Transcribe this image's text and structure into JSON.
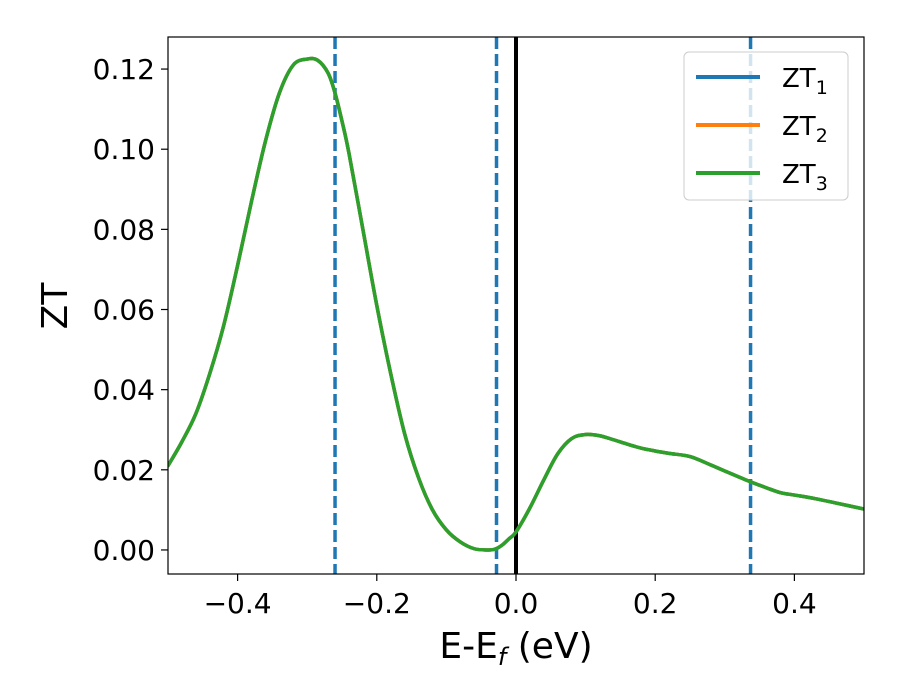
{
  "chart_data": {
    "type": "line",
    "xlabel_main": "E-E",
    "xlabel_sub": "f",
    "xlabel_unit": " (eV)",
    "ylabel": "ZT",
    "xlim": [
      -0.5,
      0.5
    ],
    "ylim": [
      -0.006,
      0.128
    ],
    "x_ticks": [
      -0.4,
      -0.2,
      0.0,
      0.2,
      0.4
    ],
    "x_tick_labels": [
      "−0.4",
      "−0.2",
      "0.0",
      "0.2",
      "0.4"
    ],
    "y_ticks": [
      0.0,
      0.02,
      0.04,
      0.06,
      0.08,
      0.1,
      0.12
    ],
    "y_tick_labels": [
      "0.00",
      "0.02",
      "0.04",
      "0.06",
      "0.08",
      "0.10",
      "0.12"
    ],
    "grid": false,
    "legend_position": "top-right",
    "legend": [
      {
        "base": "ZT",
        "sub": "1",
        "color": "#1f77b4"
      },
      {
        "base": "ZT",
        "sub": "2",
        "color": "#ff7f0e"
      },
      {
        "base": "ZT",
        "sub": "3",
        "color": "#2ca02c"
      }
    ],
    "x": [
      -0.5,
      -0.48,
      -0.46,
      -0.44,
      -0.42,
      -0.4,
      -0.38,
      -0.36,
      -0.34,
      -0.32,
      -0.3,
      -0.285,
      -0.27,
      -0.26,
      -0.25,
      -0.24,
      -0.22,
      -0.2,
      -0.18,
      -0.16,
      -0.14,
      -0.12,
      -0.1,
      -0.08,
      -0.06,
      -0.04,
      -0.03,
      -0.02,
      -0.01,
      0.0,
      0.02,
      0.04,
      0.06,
      0.08,
      0.1,
      0.12,
      0.14,
      0.16,
      0.18,
      0.2,
      0.22,
      0.25,
      0.28,
      0.3,
      0.33,
      0.36,
      0.38,
      0.4,
      0.43,
      0.46,
      0.5
    ],
    "series": [
      {
        "name": "ZT₁",
        "color": "#1f77b4",
        "values": [
          0.021,
          0.027,
          0.034,
          0.044,
          0.056,
          0.071,
          0.087,
          0.102,
          0.114,
          0.121,
          0.1225,
          0.1222,
          0.119,
          0.114,
          0.107,
          0.099,
          0.08,
          0.061,
          0.044,
          0.029,
          0.018,
          0.01,
          0.005,
          0.002,
          0.0003,
          0.0,
          0.0002,
          0.0012,
          0.0028,
          0.0045,
          0.0105,
          0.0175,
          0.024,
          0.0278,
          0.0288,
          0.0285,
          0.0275,
          0.0264,
          0.0254,
          0.0247,
          0.0241,
          0.0233,
          0.0212,
          0.0197,
          0.0175,
          0.0155,
          0.0143,
          0.0137,
          0.0128,
          0.0117,
          0.0102
        ]
      },
      {
        "name": "ZT₂",
        "color": "#ff7f0e",
        "values": [
          0.021,
          0.027,
          0.034,
          0.044,
          0.056,
          0.071,
          0.087,
          0.102,
          0.114,
          0.121,
          0.1225,
          0.1222,
          0.119,
          0.114,
          0.107,
          0.099,
          0.08,
          0.061,
          0.044,
          0.029,
          0.018,
          0.01,
          0.005,
          0.002,
          0.0003,
          0.0,
          0.0002,
          0.0012,
          0.0028,
          0.0045,
          0.0105,
          0.0175,
          0.024,
          0.0278,
          0.0288,
          0.0285,
          0.0275,
          0.0264,
          0.0254,
          0.0247,
          0.0241,
          0.0233,
          0.0212,
          0.0197,
          0.0175,
          0.0155,
          0.0143,
          0.0137,
          0.0128,
          0.0117,
          0.0102
        ]
      },
      {
        "name": "ZT₃",
        "color": "#2ca02c",
        "values": [
          0.021,
          0.027,
          0.034,
          0.044,
          0.056,
          0.071,
          0.087,
          0.102,
          0.114,
          0.121,
          0.1225,
          0.1222,
          0.119,
          0.114,
          0.107,
          0.099,
          0.08,
          0.061,
          0.044,
          0.029,
          0.018,
          0.01,
          0.005,
          0.002,
          0.0003,
          0.0,
          0.0002,
          0.0012,
          0.0028,
          0.0045,
          0.0105,
          0.0175,
          0.024,
          0.0278,
          0.0288,
          0.0285,
          0.0275,
          0.0264,
          0.0254,
          0.0247,
          0.0241,
          0.0233,
          0.0212,
          0.0197,
          0.0175,
          0.0155,
          0.0143,
          0.0137,
          0.0128,
          0.0117,
          0.0102
        ]
      }
    ],
    "vlines": [
      {
        "x": -0.26,
        "style": "dashed",
        "color": "#1f77b4"
      },
      {
        "x": -0.028,
        "style": "dashed",
        "color": "#1f77b4"
      },
      {
        "x": 0.0,
        "style": "solid",
        "color": "#000000"
      },
      {
        "x": 0.337,
        "style": "dashed",
        "color": "#1f77b4"
      }
    ]
  }
}
